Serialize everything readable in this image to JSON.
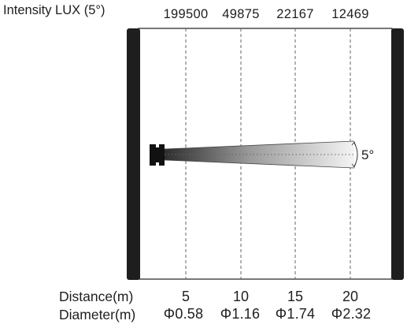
{
  "header": {
    "intensity_label": "Intensity LUX (5°)"
  },
  "lux_values": [
    "199500",
    "49875",
    "22167",
    "12469"
  ],
  "beam_angle_label": "5°",
  "distance": {
    "label": "Distance(m)",
    "values": [
      "5",
      "10",
      "15",
      "20"
    ]
  },
  "diameter": {
    "label": "Diameter(m)",
    "values": [
      "Φ0.58",
      "Φ1.16",
      "Φ1.74",
      "Φ2.32"
    ]
  },
  "colors": {
    "wall": "#1e1e1e",
    "beam_dark": "#3a3a3a",
    "beam_light": "#f2f2f2",
    "guide_lines": "#777777"
  }
}
